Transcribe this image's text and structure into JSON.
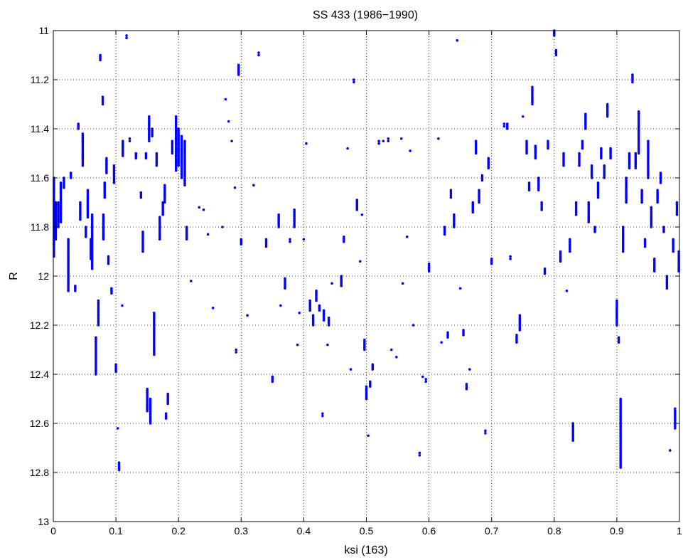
{
  "chart_data": {
    "type": "scatter",
    "title": "SS 433 (1986−1990)",
    "xlabel": "ksi (163)",
    "ylabel": "R",
    "xlim": [
      0,
      1
    ],
    "ylim": [
      11,
      13
    ],
    "y_reversed": true,
    "grid": true,
    "x_ticks": [
      "0",
      "0.1",
      "0.2",
      "0.3",
      "0.4",
      "0.5",
      "0.6",
      "0.7",
      "0.8",
      "0.9",
      "1"
    ],
    "y_ticks": [
      "11",
      "11.2",
      "11.4",
      "11.6",
      "11.8",
      "12",
      "12.2",
      "12.4",
      "12.6",
      "12.8",
      "13"
    ],
    "series": [
      {
        "color": "#0000ff",
        "marker": "dot",
        "clusters": [
          [
            0.001,
            11.6,
            11.92
          ],
          [
            0.004,
            11.7,
            11.85
          ],
          [
            0.008,
            11.7,
            11.8
          ],
          [
            0.012,
            11.62,
            11.78
          ],
          [
            0.017,
            11.6,
            11.64
          ],
          [
            0.024,
            11.85,
            12.06
          ],
          [
            0.028,
            11.58,
            11.6
          ],
          [
            0.035,
            12.04,
            12.06
          ],
          [
            0.04,
            11.38,
            11.4
          ],
          [
            0.043,
            11.7,
            11.77
          ],
          [
            0.047,
            11.42,
            11.55
          ],
          [
            0.052,
            11.8,
            11.84
          ],
          [
            0.055,
            11.65,
            11.76
          ],
          [
            0.06,
            11.85,
            11.93
          ],
          [
            0.062,
            11.75,
            11.97
          ],
          [
            0.068,
            12.25,
            12.4
          ],
          [
            0.072,
            12.1,
            12.2
          ],
          [
            0.075,
            11.1,
            11.12
          ],
          [
            0.079,
            11.27,
            11.3
          ],
          [
            0.08,
            11.75,
            11.85
          ],
          [
            0.082,
            11.62,
            11.68
          ],
          [
            0.085,
            11.52,
            11.58
          ],
          [
            0.088,
            11.92,
            11.95
          ],
          [
            0.093,
            12.05,
            12.07
          ],
          [
            0.097,
            11.55,
            11.62
          ],
          [
            0.1,
            12.36,
            12.39
          ],
          [
            0.103,
            12.62,
            12.62
          ],
          [
            0.105,
            12.76,
            12.79
          ],
          [
            0.11,
            12.12,
            12.12
          ],
          [
            0.111,
            11.45,
            11.51
          ],
          [
            0.117,
            11.02,
            11.03
          ],
          [
            0.122,
            11.44,
            11.45
          ],
          [
            0.132,
            11.5,
            11.52
          ],
          [
            0.14,
            11.66,
            11.68
          ],
          [
            0.143,
            11.82,
            11.9
          ],
          [
            0.148,
            11.5,
            11.52
          ],
          [
            0.15,
            12.46,
            12.55
          ],
          [
            0.153,
            11.35,
            11.45
          ],
          [
            0.155,
            12.5,
            12.6
          ],
          [
            0.158,
            11.4,
            11.43
          ],
          [
            0.161,
            12.15,
            12.32
          ],
          [
            0.165,
            11.5,
            11.55
          ],
          [
            0.17,
            11.76,
            11.85
          ],
          [
            0.175,
            11.7,
            11.75
          ],
          [
            0.178,
            11.63,
            11.7
          ],
          [
            0.18,
            12.56,
            12.58
          ],
          [
            0.183,
            12.48,
            12.52
          ],
          [
            0.19,
            11.45,
            11.5
          ],
          [
            0.196,
            11.35,
            11.57
          ],
          [
            0.2,
            11.4,
            11.55
          ],
          [
            0.205,
            11.43,
            11.6
          ],
          [
            0.21,
            11.45,
            11.63
          ],
          [
            0.213,
            11.8,
            11.85
          ],
          [
            0.22,
            12.02,
            12.02
          ],
          [
            0.233,
            11.72,
            11.72
          ],
          [
            0.24,
            11.73,
            11.73
          ],
          [
            0.247,
            11.83,
            11.83
          ],
          [
            0.255,
            12.13,
            12.13
          ],
          [
            0.27,
            11.8,
            11.8
          ],
          [
            0.275,
            11.28,
            11.28
          ],
          [
            0.28,
            11.37,
            11.37
          ],
          [
            0.285,
            11.45,
            11.45
          ],
          [
            0.29,
            11.64,
            11.64
          ],
          [
            0.292,
            12.3,
            12.31
          ],
          [
            0.296,
            11.14,
            11.18
          ],
          [
            0.3,
            11.85,
            11.87
          ],
          [
            0.31,
            12.16,
            12.16
          ],
          [
            0.32,
            11.63,
            11.63
          ],
          [
            0.328,
            11.09,
            11.1
          ],
          [
            0.34,
            11.85,
            11.88
          ],
          [
            0.35,
            12.41,
            12.43
          ],
          [
            0.36,
            11.75,
            11.8
          ],
          [
            0.363,
            12.12,
            12.12
          ],
          [
            0.37,
            12.01,
            12.05
          ],
          [
            0.378,
            11.85,
            11.86
          ],
          [
            0.385,
            11.73,
            11.8
          ],
          [
            0.39,
            12.28,
            12.28
          ],
          [
            0.393,
            12.15,
            12.15
          ],
          [
            0.4,
            11.85,
            11.85
          ],
          [
            0.404,
            11.46,
            11.46
          ],
          [
            0.41,
            12.1,
            12.14
          ],
          [
            0.415,
            12.16,
            12.2
          ],
          [
            0.42,
            12.06,
            12.1
          ],
          [
            0.425,
            12.12,
            12.14
          ],
          [
            0.43,
            12.56,
            12.57
          ],
          [
            0.432,
            12.14,
            12.18
          ],
          [
            0.438,
            12.28,
            12.28
          ],
          [
            0.44,
            12.17,
            12.2
          ],
          [
            0.445,
            12.03,
            12.03
          ],
          [
            0.46,
            12.0,
            12.04
          ],
          [
            0.464,
            11.84,
            11.86
          ],
          [
            0.47,
            11.48,
            11.48
          ],
          [
            0.475,
            12.38,
            12.38
          ],
          [
            0.48,
            11.2,
            11.21
          ],
          [
            0.485,
            11.69,
            11.73
          ],
          [
            0.49,
            11.94,
            11.94
          ],
          [
            0.493,
            11.75,
            11.75
          ],
          [
            0.497,
            12.26,
            12.3
          ],
          [
            0.5,
            12.45,
            12.5
          ],
          [
            0.503,
            12.65,
            12.65
          ],
          [
            0.506,
            12.43,
            12.45
          ],
          [
            0.51,
            12.36,
            12.38
          ],
          [
            0.52,
            11.45,
            11.46
          ],
          [
            0.527,
            11.45,
            11.45
          ],
          [
            0.535,
            11.44,
            11.45
          ],
          [
            0.54,
            12.3,
            12.3
          ],
          [
            0.548,
            12.33,
            12.33
          ],
          [
            0.556,
            11.44,
            11.44
          ],
          [
            0.558,
            12.03,
            12.03
          ],
          [
            0.565,
            11.84,
            11.84
          ],
          [
            0.57,
            11.49,
            11.49
          ],
          [
            0.575,
            12.2,
            12.2
          ],
          [
            0.585,
            12.72,
            12.73
          ],
          [
            0.59,
            12.41,
            12.41
          ],
          [
            0.595,
            12.42,
            12.43
          ],
          [
            0.6,
            11.95,
            11.98
          ],
          [
            0.615,
            11.44,
            11.44
          ],
          [
            0.62,
            12.27,
            12.27
          ],
          [
            0.625,
            11.8,
            11.83
          ],
          [
            0.63,
            12.23,
            12.25
          ],
          [
            0.635,
            11.65,
            11.68
          ],
          [
            0.64,
            11.75,
            11.8
          ],
          [
            0.645,
            11.04,
            11.04
          ],
          [
            0.65,
            12.05,
            12.05
          ],
          [
            0.655,
            12.22,
            12.24
          ],
          [
            0.66,
            12.44,
            12.46
          ],
          [
            0.665,
            12.38,
            12.38
          ],
          [
            0.67,
            11.7,
            11.74
          ],
          [
            0.675,
            11.45,
            11.5
          ],
          [
            0.68,
            11.65,
            11.7
          ],
          [
            0.685,
            11.59,
            11.61
          ],
          [
            0.69,
            12.63,
            12.64
          ],
          [
            0.695,
            11.52,
            11.56
          ],
          [
            0.7,
            11.93,
            11.95
          ],
          [
            0.72,
            11.38,
            11.39
          ],
          [
            0.725,
            11.38,
            11.4
          ],
          [
            0.73,
            11.92,
            11.93
          ],
          [
            0.74,
            12.24,
            12.27
          ],
          [
            0.745,
            12.16,
            12.22
          ],
          [
            0.75,
            11.35,
            11.35
          ],
          [
            0.756,
            11.45,
            11.5
          ],
          [
            0.76,
            11.62,
            11.65
          ],
          [
            0.765,
            11.23,
            11.3
          ],
          [
            0.77,
            11.47,
            11.52
          ],
          [
            0.775,
            11.6,
            11.65
          ],
          [
            0.78,
            11.7,
            11.73
          ],
          [
            0.785,
            11.97,
            11.99
          ],
          [
            0.79,
            11.45,
            11.48
          ],
          [
            0.8,
            11.0,
            11.02
          ],
          [
            0.803,
            11.08,
            11.1
          ],
          [
            0.81,
            11.9,
            11.94
          ],
          [
            0.815,
            11.5,
            11.55
          ],
          [
            0.82,
            12.06,
            12.06
          ],
          [
            0.825,
            11.85,
            11.9
          ],
          [
            0.83,
            12.6,
            12.67
          ],
          [
            0.835,
            11.7,
            11.75
          ],
          [
            0.84,
            11.5,
            11.55
          ],
          [
            0.845,
            11.45,
            11.48
          ],
          [
            0.85,
            11.34,
            11.4
          ],
          [
            0.855,
            11.7,
            11.78
          ],
          [
            0.86,
            11.55,
            11.6
          ],
          [
            0.865,
            11.8,
            11.82
          ],
          [
            0.87,
            11.62,
            11.68
          ],
          [
            0.875,
            11.48,
            11.52
          ],
          [
            0.88,
            11.55,
            11.6
          ],
          [
            0.885,
            11.3,
            11.35
          ],
          [
            0.89,
            11.48,
            11.52
          ],
          [
            0.9,
            12.1,
            12.2
          ],
          [
            0.903,
            12.25,
            12.27
          ],
          [
            0.906,
            12.5,
            12.78
          ],
          [
            0.91,
            11.8,
            11.9
          ],
          [
            0.915,
            11.6,
            11.7
          ],
          [
            0.92,
            11.5,
            11.56
          ],
          [
            0.925,
            11.18,
            11.21
          ],
          [
            0.93,
            11.5,
            11.56
          ],
          [
            0.935,
            11.33,
            11.5
          ],
          [
            0.94,
            11.65,
            11.7
          ],
          [
            0.945,
            11.85,
            11.88
          ],
          [
            0.95,
            11.45,
            11.6
          ],
          [
            0.955,
            11.72,
            11.8
          ],
          [
            0.96,
            11.93,
            11.98
          ],
          [
            0.965,
            11.65,
            11.7
          ],
          [
            0.97,
            11.58,
            11.62
          ],
          [
            0.975,
            11.8,
            11.82
          ],
          [
            0.98,
            12.0,
            12.05
          ],
          [
            0.985,
            12.71,
            12.71
          ],
          [
            0.99,
            11.85,
            11.9
          ],
          [
            0.993,
            12.54,
            12.62
          ],
          [
            0.996,
            11.7,
            11.75
          ],
          [
            0.999,
            11.9,
            11.98
          ]
        ]
      }
    ]
  }
}
